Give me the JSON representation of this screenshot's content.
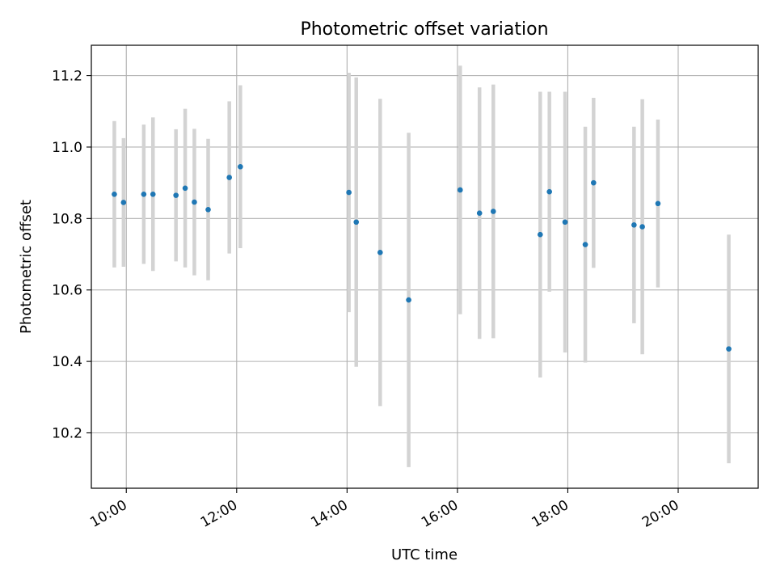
{
  "chart_data": {
    "type": "scatter",
    "title": "Photometric offset variation",
    "xlabel": "UTC time",
    "ylabel": "Photometric offset",
    "x_unit": "hours (UTC)",
    "xlim": [
      "09:22",
      "21:27"
    ],
    "ylim": [
      10.045,
      11.285
    ],
    "x_ticks": [
      "10:00",
      "12:00",
      "14:00",
      "16:00",
      "18:00",
      "20:00"
    ],
    "y_ticks": [
      "10.2",
      "10.4",
      "10.6",
      "10.8",
      "11.0",
      "11.2"
    ],
    "grid": true,
    "legend": "none",
    "colors": {
      "point": "#1f77b4",
      "errorbar": "#d3d3d3",
      "grid": "#b0b0b0"
    },
    "points": [
      {
        "x": "09:47",
        "y": 10.868,
        "err": 0.205
      },
      {
        "x": "09:57",
        "y": 10.845,
        "err": 0.18
      },
      {
        "x": "10:19",
        "y": 10.868,
        "err": 0.195
      },
      {
        "x": "10:29",
        "y": 10.868,
        "err": 0.215
      },
      {
        "x": "10:54",
        "y": 10.865,
        "err": 0.185
      },
      {
        "x": "11:04",
        "y": 10.885,
        "err": 0.222
      },
      {
        "x": "11:14",
        "y": 10.846,
        "err": 0.205
      },
      {
        "x": "11:29",
        "y": 10.825,
        "err": 0.198
      },
      {
        "x": "11:52",
        "y": 10.915,
        "err": 0.213
      },
      {
        "x": "12:04",
        "y": 10.945,
        "err": 0.228
      },
      {
        "x": "14:02",
        "y": 10.873,
        "err": 0.335
      },
      {
        "x": "14:10",
        "y": 10.79,
        "err": 0.405
      },
      {
        "x": "14:36",
        "y": 10.705,
        "err": 0.43
      },
      {
        "x": "15:07",
        "y": 10.572,
        "err": 0.468
      },
      {
        "x": "16:03",
        "y": 10.88,
        "err": 0.348
      },
      {
        "x": "16:24",
        "y": 10.815,
        "err": 0.352
      },
      {
        "x": "16:39",
        "y": 10.82,
        "err": 0.355
      },
      {
        "x": "17:30",
        "y": 10.755,
        "err": 0.4
      },
      {
        "x": "17:40",
        "y": 10.875,
        "err": 0.28
      },
      {
        "x": "17:57",
        "y": 10.79,
        "err": 0.365
      },
      {
        "x": "18:19",
        "y": 10.727,
        "err": 0.33
      },
      {
        "x": "18:28",
        "y": 10.9,
        "err": 0.238
      },
      {
        "x": "19:12",
        "y": 10.782,
        "err": 0.275
      },
      {
        "x": "19:21",
        "y": 10.777,
        "err": 0.357
      },
      {
        "x": "19:38",
        "y": 10.842,
        "err": 0.235
      },
      {
        "x": "20:55",
        "y": 10.435,
        "err": 0.32
      }
    ]
  }
}
